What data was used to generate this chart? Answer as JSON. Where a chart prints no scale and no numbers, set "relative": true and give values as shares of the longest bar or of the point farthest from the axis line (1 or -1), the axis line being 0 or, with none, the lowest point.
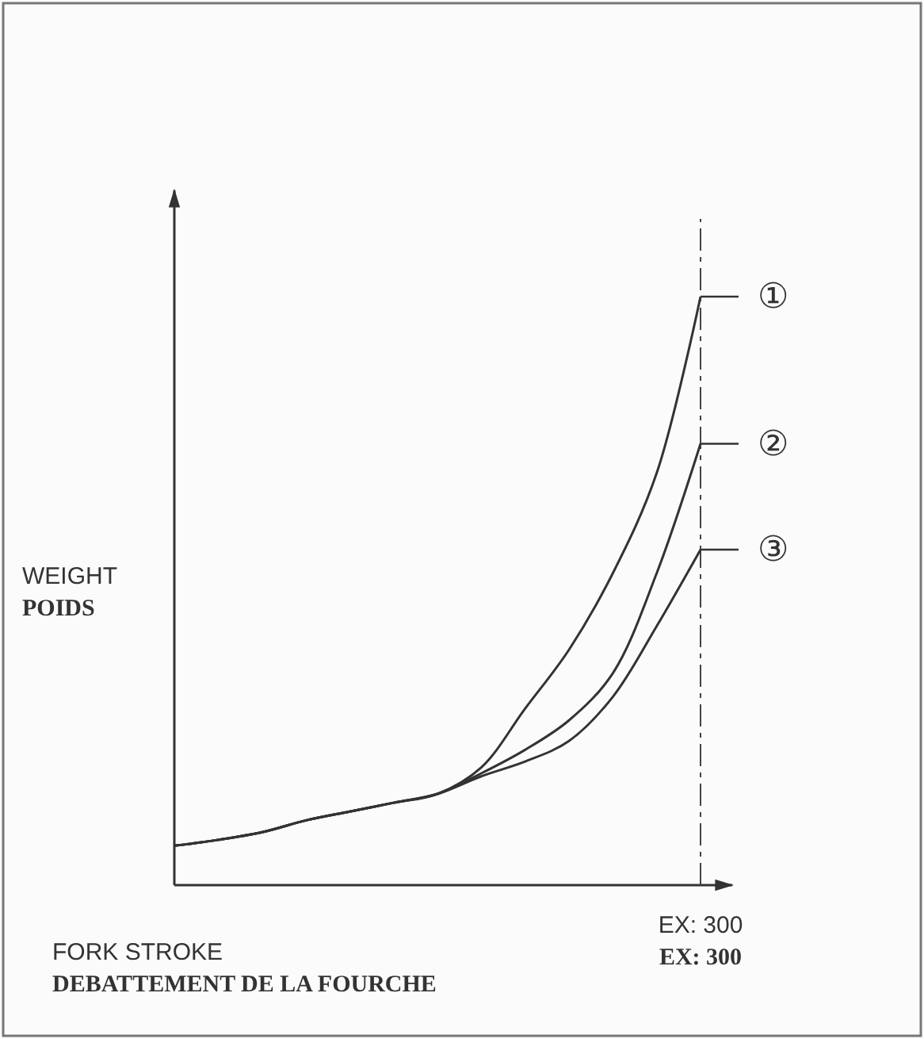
{
  "chart_data": {
    "type": "line",
    "relative": true,
    "xlabel": "FORK STROKE\nDEBATTEMENT DE LA FOURCHE",
    "ylabel": "WEIGHT\nPOIDS",
    "marker": "none",
    "line_style": "solid",
    "legend": "right",
    "categories": [
      null,
      null,
      null,
      null,
      null,
      null,
      null,
      null,
      null,
      null,
      null,
      null,
      null
    ],
    "series": [
      {
        "name": "①",
        "color": "#333333",
        "values": [
          0.067,
          0.077,
          0.09,
          0.11,
          0.125,
          0.14,
          0.155,
          0.2,
          0.3,
          0.4,
          0.53,
          0.7,
          1
        ]
      },
      {
        "name": "②",
        "color": "#333333",
        "values": [
          0.067,
          0.077,
          0.09,
          0.11,
          0.125,
          0.14,
          0.155,
          0.19,
          0.23,
          0.28,
          0.36,
          0.53,
          0.75
        ]
      },
      {
        "name": "③",
        "color": "#333333",
        "values": [
          0.067,
          0.077,
          0.09,
          0.11,
          0.125,
          0.14,
          0.155,
          0.185,
          0.21,
          0.245,
          0.32,
          0.44,
          0.57
        ]
      }
    ],
    "ref_lines": [
      {
        "axis": "x",
        "value": "EX: 300",
        "line_style": "dashed",
        "color": "#444444"
      }
    ],
    "annotations": [
      "EX: 300"
    ]
  }
}
